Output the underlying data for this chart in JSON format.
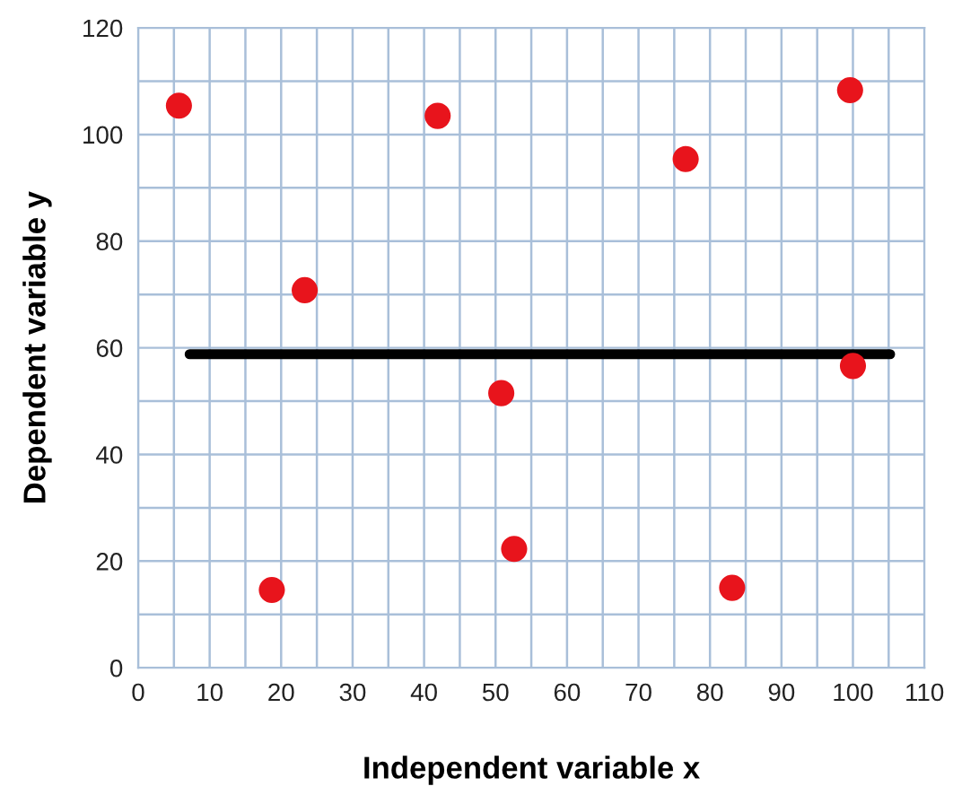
{
  "chart_data": {
    "type": "scatter",
    "xlabel": "Independent variable x",
    "ylabel": "Dependent variable y",
    "xlim": [
      0,
      110
    ],
    "ylim": [
      0,
      120
    ],
    "xticks": [
      0,
      {
        "value": 5,
        "label": null
      },
      10,
      {
        "value": 15,
        "label": null
      },
      20,
      {
        "value": 25,
        "label": null
      },
      30,
      {
        "value": 35,
        "label": null
      },
      40,
      {
        "value": 45,
        "label": null
      },
      50,
      {
        "value": 55,
        "label": null
      },
      60,
      {
        "value": 65,
        "label": null
      },
      70,
      {
        "value": 75,
        "label": null
      },
      80,
      {
        "value": 85,
        "label": null
      },
      90,
      {
        "value": 95,
        "label": null
      },
      100,
      {
        "value": 105,
        "label": null
      },
      110
    ],
    "yticks": [
      0,
      {
        "value": 10,
        "label": null
      },
      20,
      {
        "value": 30,
        "label": null
      },
      40,
      {
        "value": 50,
        "label": null
      },
      60,
      {
        "value": 70,
        "label": null
      },
      80,
      {
        "value": 90,
        "label": null
      },
      100,
      {
        "value": 110,
        "label": null
      },
      120
    ],
    "grid": true,
    "series": [
      {
        "marker": "circle",
        "color": "#e8141c",
        "x": [
          5.7,
          18.7,
          23.3,
          41.9,
          50.8,
          52.6,
          76.6,
          83.1,
          99.6,
          100
        ],
        "values": [
          105.4,
          14.6,
          70.8,
          103.5,
          51.5,
          22.3,
          95.4,
          15.0,
          108.3,
          56.6
        ]
      },
      {
        "type": "line",
        "color": "#000000",
        "x": [
          7.2,
          105.2
        ],
        "values": [
          58.8,
          58.8
        ],
        "line_style": "solid",
        "marker": "none"
      }
    ]
  }
}
